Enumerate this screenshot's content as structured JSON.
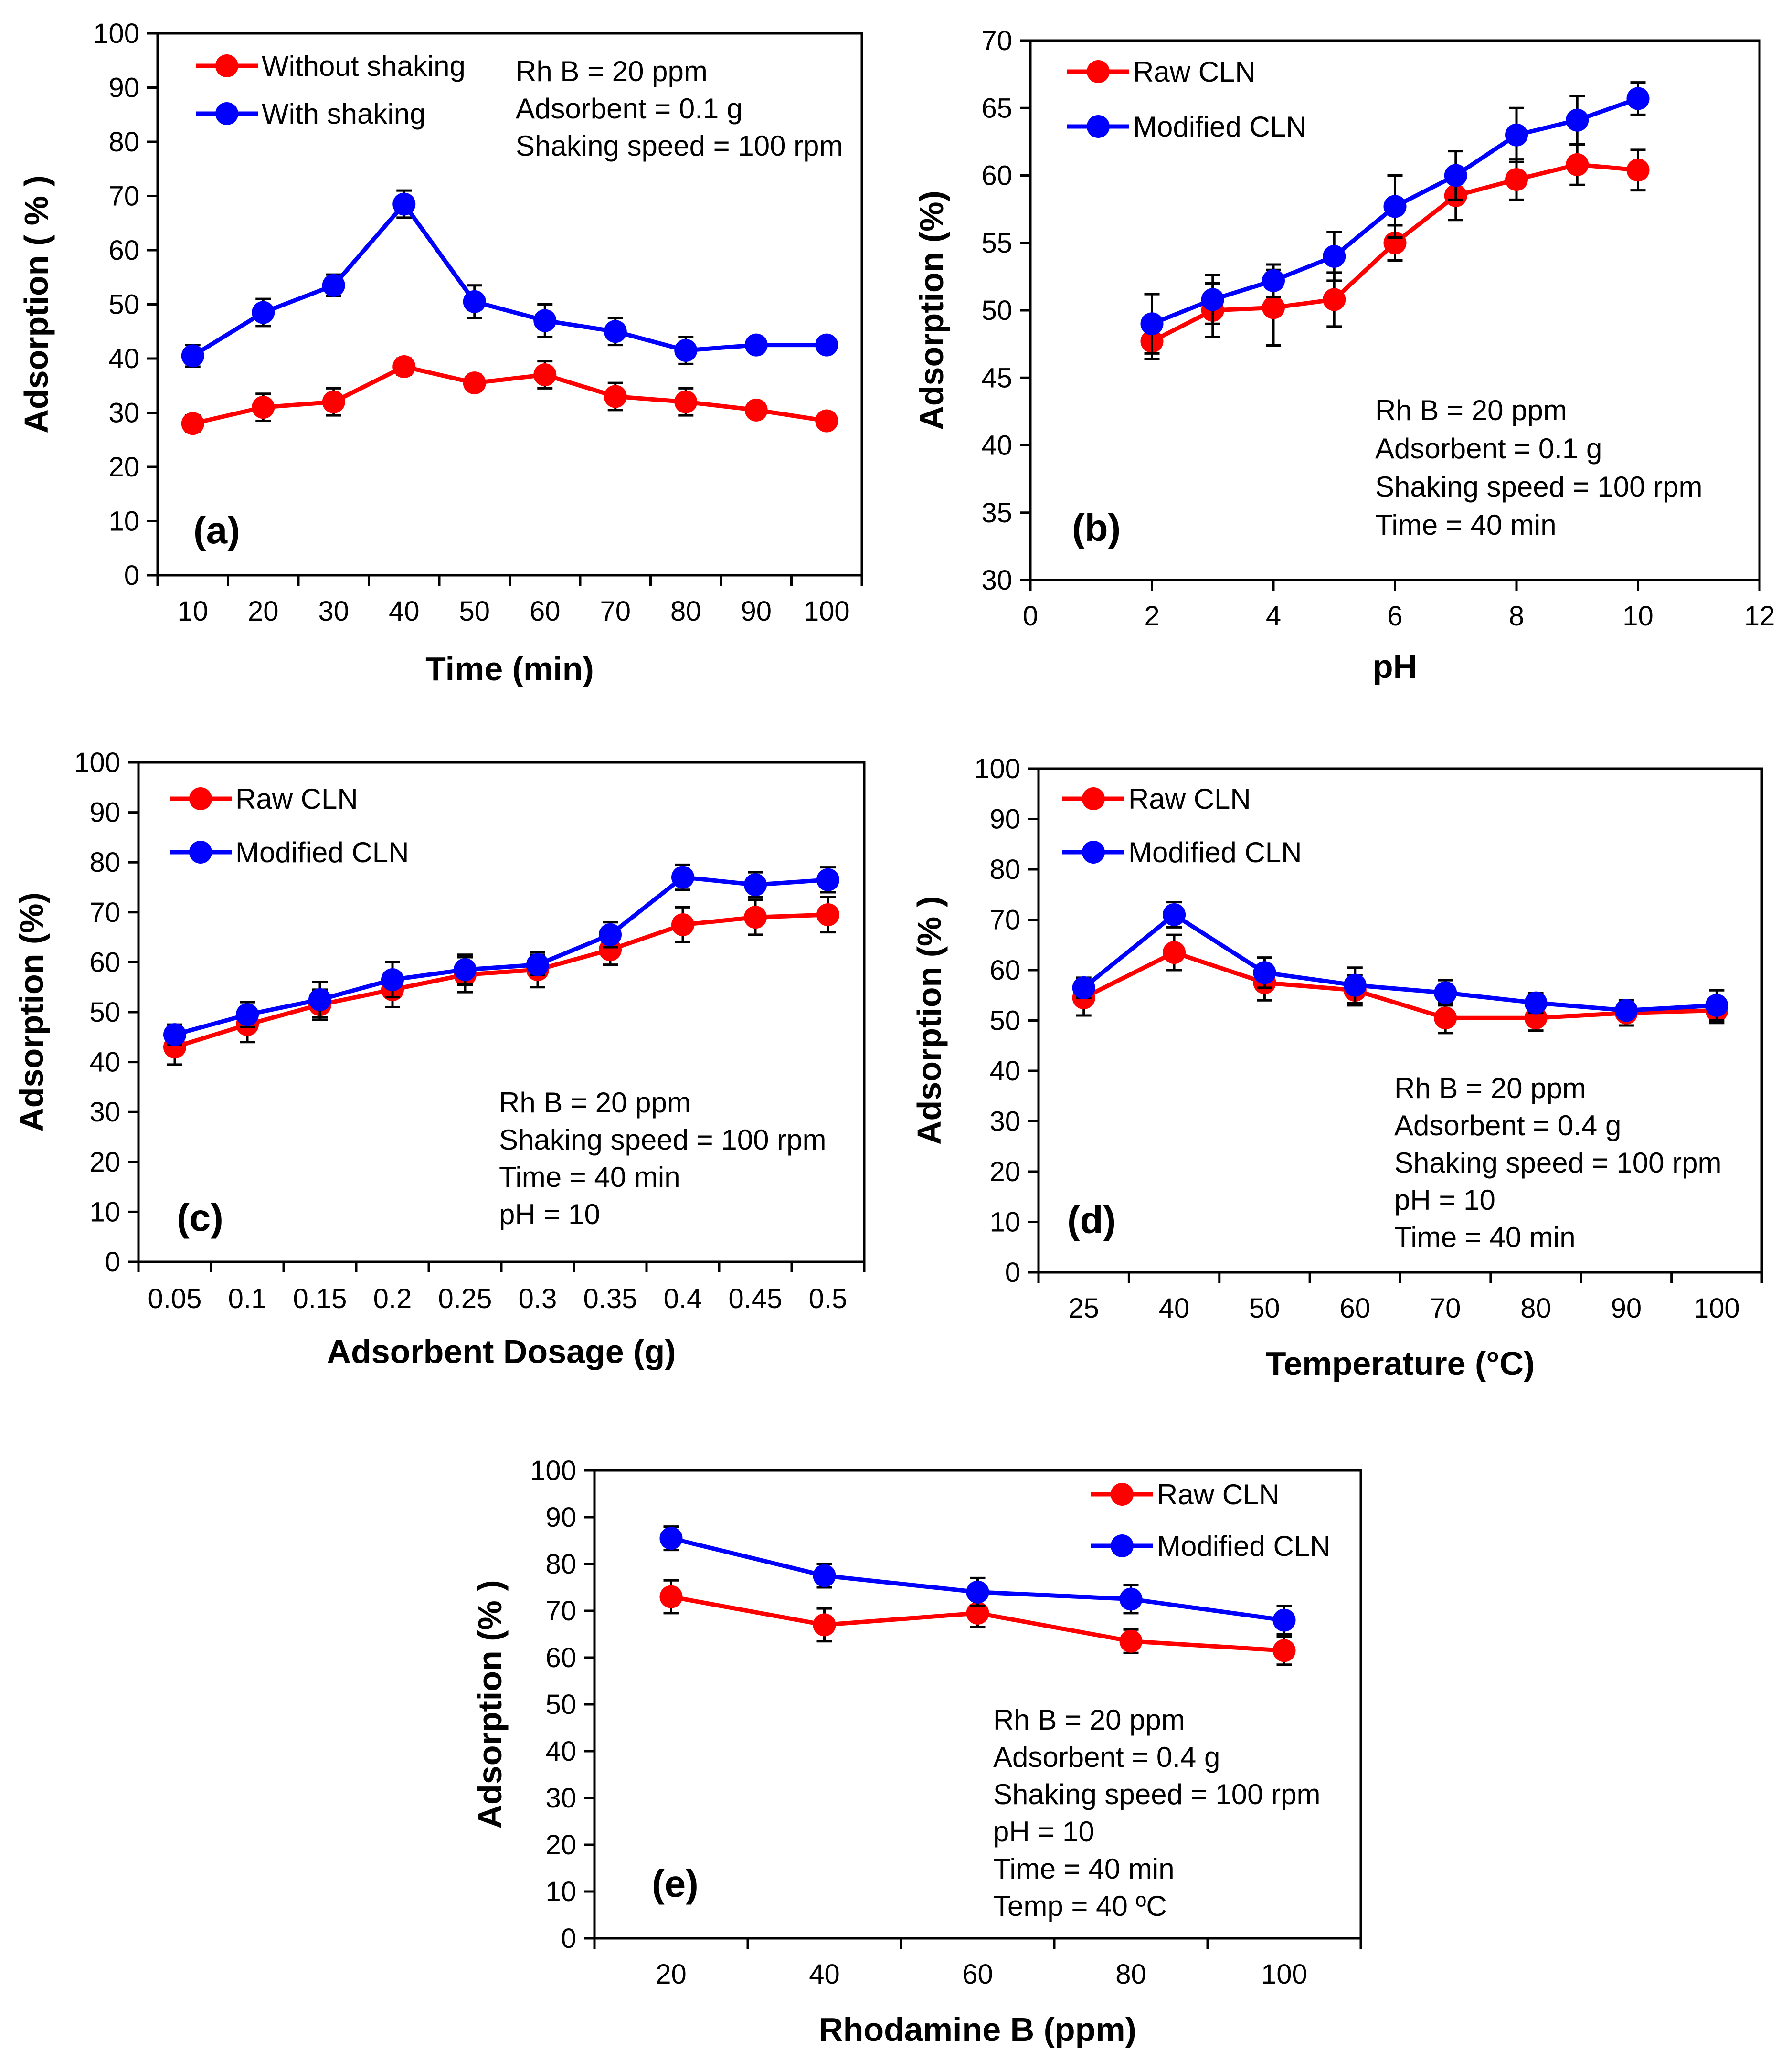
{
  "colors": {
    "red": "#FF0000",
    "blue": "#0000FF",
    "axis": "#000000"
  },
  "chart_data": [
    {
      "type": "line",
      "panel_label": "(a)",
      "xlabel": "Time (min)",
      "ylabel": "Adsorption ( % )",
      "x_is_category": true,
      "xlim": [
        0.5,
        10.5
      ],
      "ylim": [
        0,
        100
      ],
      "x_ticks": [
        "10",
        "20",
        "30",
        "40",
        "50",
        "60",
        "70",
        "80",
        "90",
        "100"
      ],
      "y_ticks": [
        "0",
        "10",
        "20",
        "30",
        "40",
        "50",
        "60",
        "70",
        "80",
        "90",
        "100"
      ],
      "legend_position": "top-left",
      "series": [
        {
          "name": "Without shaking",
          "color": "#FF0000",
          "x": [
            1,
            2,
            3,
            4,
            5,
            6,
            7,
            8,
            9,
            10
          ],
          "y": [
            28,
            31,
            32,
            38.5,
            35.5,
            37,
            33,
            32,
            30.5,
            28.5
          ],
          "err": [
            1.5,
            2.5,
            2.5,
            1.5,
            1.5,
            2.5,
            2.5,
            2.5,
            1,
            1
          ]
        },
        {
          "name": "With shaking",
          "color": "#0000FF",
          "x": [
            1,
            2,
            3,
            4,
            5,
            6,
            7,
            8,
            9,
            10
          ],
          "y": [
            40.5,
            48.5,
            53.5,
            68.5,
            50.5,
            47,
            45,
            41.5,
            42.5,
            42.5
          ],
          "err": [
            2,
            2.5,
            2,
            2.5,
            3,
            3,
            2.5,
            2.5,
            1,
            1
          ]
        }
      ],
      "annotation": [
        "Rh B = 20 ppm",
        "Adsorbent = 0.1 g",
        "Shaking speed = 100 rpm"
      ]
    },
    {
      "type": "line",
      "panel_label": "(b)",
      "xlabel": "pH",
      "ylabel": "Adsorption (%)",
      "x_is_category": false,
      "xlim": [
        0,
        12
      ],
      "ylim": [
        30,
        70
      ],
      "x_ticks": [
        "0",
        "2",
        "4",
        "6",
        "8",
        "10",
        "12"
      ],
      "x_tick_values": [
        0,
        2,
        4,
        6,
        8,
        10,
        12
      ],
      "y_ticks": [
        "30",
        "35",
        "40",
        "45",
        "50",
        "55",
        "60",
        "65",
        "70"
      ],
      "legend_position": "top-left",
      "series": [
        {
          "name": "Raw CLN",
          "color": "#FF0000",
          "x": [
            2,
            3,
            4,
            5,
            6,
            7,
            8,
            9,
            10
          ],
          "y": [
            47.7,
            50,
            50.2,
            50.8,
            55,
            58.5,
            59.7,
            60.8,
            60.4
          ],
          "err": [
            1.3,
            2,
            2.8,
            2,
            1.3,
            1.8,
            1.5,
            1.5,
            1.5
          ]
        },
        {
          "name": "Modified CLN",
          "color": "#0000FF",
          "x": [
            2,
            3,
            4,
            5,
            6,
            7,
            8,
            9,
            10
          ],
          "y": [
            49,
            50.8,
            52.2,
            54,
            57.7,
            60,
            63,
            64.1,
            65.7
          ],
          "err": [
            2.2,
            1.8,
            1.2,
            1.8,
            2.3,
            1.8,
            2,
            1.8,
            1.2
          ]
        }
      ],
      "annotation": [
        "Rh B = 20 ppm",
        "Adsorbent = 0.1 g",
        "Shaking speed = 100 rpm",
        "Time = 40 min"
      ]
    },
    {
      "type": "line",
      "panel_label": "(c)",
      "xlabel": "Adsorbent Dosage (g)",
      "ylabel": "Adsorption (%)",
      "x_is_category": true,
      "xlim": [
        0.5,
        10.5
      ],
      "ylim": [
        0,
        100
      ],
      "x_ticks": [
        "0.05",
        "0.1",
        "0.15",
        "0.2",
        "0.25",
        "0.3",
        "0.35",
        "0.4",
        "0.45",
        "0.5"
      ],
      "y_ticks": [
        "0",
        "10",
        "20",
        "30",
        "40",
        "50",
        "60",
        "70",
        "80",
        "90",
        "100"
      ],
      "legend_position": "top-left",
      "series": [
        {
          "name": "Raw CLN",
          "color": "#FF0000",
          "x": [
            1,
            2,
            3,
            4,
            5,
            6,
            7,
            8,
            9,
            10
          ],
          "y": [
            43,
            47.5,
            51.5,
            54.5,
            57.5,
            58.5,
            62.5,
            67.5,
            69,
            69.5
          ],
          "err": [
            3.5,
            3.5,
            3,
            3.5,
            3.5,
            3.5,
            3,
            3.5,
            3.5,
            3.5
          ]
        },
        {
          "name": "Modified CLN",
          "color": "#0000FF",
          "x": [
            1,
            2,
            3,
            4,
            5,
            6,
            7,
            8,
            9,
            10
          ],
          "y": [
            45.5,
            49.5,
            52.5,
            56.5,
            58.5,
            59.5,
            65.5,
            77,
            75.5,
            76.5
          ],
          "err": [
            2,
            2.5,
            3.5,
            3.5,
            3,
            2,
            2.5,
            2.5,
            2.5,
            2.5
          ]
        }
      ],
      "annotation": [
        "Rh B = 20 ppm",
        "Shaking speed = 100 rpm",
        "Time = 40 min",
        "pH = 10"
      ]
    },
    {
      "type": "line",
      "panel_label": "(d)",
      "xlabel": "Temperature (°C)",
      "ylabel": "Adsorption (% )",
      "x_is_category": true,
      "xlim": [
        0.5,
        8.5
      ],
      "ylim": [
        0,
        100
      ],
      "x_ticks": [
        "25",
        "40",
        "50",
        "60",
        "70",
        "80",
        "90",
        "100"
      ],
      "y_ticks": [
        "0",
        "10",
        "20",
        "30",
        "40",
        "50",
        "60",
        "70",
        "80",
        "90",
        "100"
      ],
      "legend_position": "top-left",
      "series": [
        {
          "name": "Raw CLN",
          "color": "#FF0000",
          "x": [
            1,
            2,
            3,
            4,
            5,
            6,
            7,
            8
          ],
          "y": [
            54.5,
            63.5,
            57.5,
            56,
            50.5,
            50.5,
            51.5,
            52
          ],
          "err": [
            3.5,
            3.5,
            3.5,
            3,
            3,
            2.5,
            2.5,
            2.5
          ]
        },
        {
          "name": "Modified CLN",
          "color": "#0000FF",
          "x": [
            1,
            2,
            3,
            4,
            5,
            6,
            7,
            8
          ],
          "y": [
            56.5,
            71,
            59.5,
            57,
            55.5,
            53.5,
            52,
            53
          ],
          "err": [
            2,
            2.5,
            3,
            3.5,
            2.5,
            2,
            1.5,
            3
          ]
        }
      ],
      "annotation": [
        "Rh B = 20 ppm",
        "Adsorbent = 0.4 g",
        "Shaking speed = 100 rpm",
        "pH = 10",
        "Time = 40 min"
      ]
    },
    {
      "type": "line",
      "panel_label": "(e)",
      "xlabel": "Rhodamine B (ppm)",
      "ylabel": "Adsorption (% )",
      "x_is_category": true,
      "xlim": [
        0.5,
        5.5
      ],
      "ylim": [
        0,
        100
      ],
      "x_ticks": [
        "20",
        "40",
        "60",
        "80",
        "100"
      ],
      "y_ticks": [
        "0",
        "10",
        "20",
        "30",
        "40",
        "50",
        "60",
        "70",
        "80",
        "90",
        "100"
      ],
      "legend_position": "top-right",
      "series": [
        {
          "name": "Raw CLN",
          "color": "#FF0000",
          "x": [
            1,
            2,
            3,
            4,
            5
          ],
          "y": [
            73,
            67,
            69.5,
            63.5,
            61.5
          ],
          "err": [
            3.5,
            3.5,
            3,
            2.5,
            3
          ]
        },
        {
          "name": "Modified CLN",
          "color": "#0000FF",
          "x": [
            1,
            2,
            3,
            4,
            5
          ],
          "y": [
            85.5,
            77.5,
            74,
            72.5,
            68
          ],
          "err": [
            2.5,
            2.5,
            3,
            3,
            3
          ]
        }
      ],
      "annotation": [
        "Rh B = 20 ppm",
        "Adsorbent = 0.4 g",
        "Shaking speed = 100 rpm",
        "pH = 10",
        "Time = 40 min",
        "Temp = 40 ºC"
      ]
    }
  ]
}
